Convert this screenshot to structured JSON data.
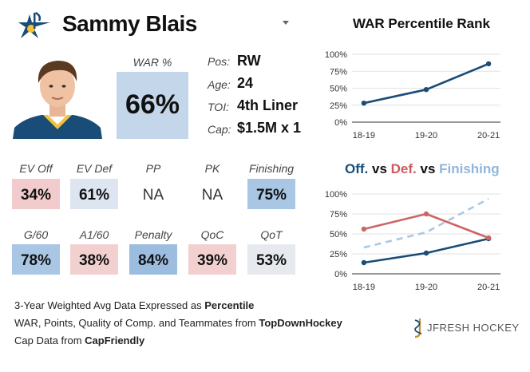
{
  "player": {
    "name": "Sammy Blais"
  },
  "war": {
    "label": "WAR %",
    "value": "66%"
  },
  "info": [
    {
      "key": "Pos:",
      "value": "RW"
    },
    {
      "key": "Age:",
      "value": "24"
    },
    {
      "key": "TOI:",
      "value": "4th Liner"
    },
    {
      "key": "Cap:",
      "value": "$1.5M x 1"
    }
  ],
  "stats_row1": [
    {
      "label": "EV Off",
      "value": "34%",
      "color": "#f2cccc"
    },
    {
      "label": "EV Def",
      "value": "61%",
      "color": "#dce5f0"
    },
    {
      "label": "PP",
      "value": "NA",
      "color": "#ffffff"
    },
    {
      "label": "PK",
      "value": "NA",
      "color": "#ffffff"
    },
    {
      "label": "Finishing",
      "value": "75%",
      "color": "#a9c6e4"
    }
  ],
  "stats_row2": [
    {
      "label": "G/60",
      "value": "78%",
      "color": "#a9c6e4"
    },
    {
      "label": "A1/60",
      "value": "38%",
      "color": "#f2d0d0"
    },
    {
      "label": "Penalty",
      "value": "84%",
      "color": "#9dbde0"
    },
    {
      "label": "QoC",
      "value": "39%",
      "color": "#f2d0d0"
    },
    {
      "label": "QoT",
      "value": "53%",
      "color": "#e6e9ee"
    }
  ],
  "chart_data": [
    {
      "type": "line",
      "title": "WAR Percentile Rank",
      "categories": [
        "18-19",
        "19-20",
        "20-21"
      ],
      "y_ticks": [
        "100%",
        "75%",
        "50%",
        "25%",
        "0%"
      ],
      "ylim": [
        0,
        100
      ],
      "grid": true,
      "series": [
        {
          "values": [
            28,
            48,
            86
          ],
          "color": "#1a4c78",
          "dashed": false
        }
      ]
    },
    {
      "type": "line",
      "title_parts": [
        {
          "text": "Off.",
          "color": "#1a4c78"
        },
        {
          "text": " vs ",
          "color": "#111111"
        },
        {
          "text": "Def.",
          "color": "#cc5a5a"
        },
        {
          "text": " vs ",
          "color": "#111111"
        },
        {
          "text": "Finishing",
          "color": "#8fb6dc"
        }
      ],
      "categories": [
        "18-19",
        "19-20",
        "20-21"
      ],
      "y_ticks": [
        "100%",
        "75%",
        "50%",
        "25%",
        "0%"
      ],
      "ylim": [
        0,
        100
      ],
      "grid": true,
      "series": [
        {
          "values": [
            14,
            26,
            44
          ],
          "color": "#1a4c78",
          "dashed": false
        },
        {
          "values": [
            56,
            75,
            45
          ],
          "color": "#cc6666",
          "dashed": false
        },
        {
          "values": [
            33,
            52,
            94
          ],
          "color": "#a8c8e6",
          "dashed": true
        }
      ]
    }
  ],
  "footer": {
    "line1_prefix": "3-Year Weighted Avg Data Expressed as ",
    "line1_bold": "Percentile",
    "line2_prefix": "WAR, Points, Quality of Comp. and Teammates from ",
    "line2_bold": "TopDownHockey",
    "line3_prefix": "Cap Data from ",
    "line3_bold": "CapFriendly"
  },
  "brand": {
    "name": "JFRESH HOCKEY"
  },
  "icons": {
    "team_logo": "blues-note-icon",
    "dropdown": "caret-down-icon",
    "brand_logo": "jfresh-logo-icon"
  },
  "colors": {
    "navy": "#1a4c78",
    "red": "#cc6666",
    "light_blue": "#a8c8e6"
  }
}
